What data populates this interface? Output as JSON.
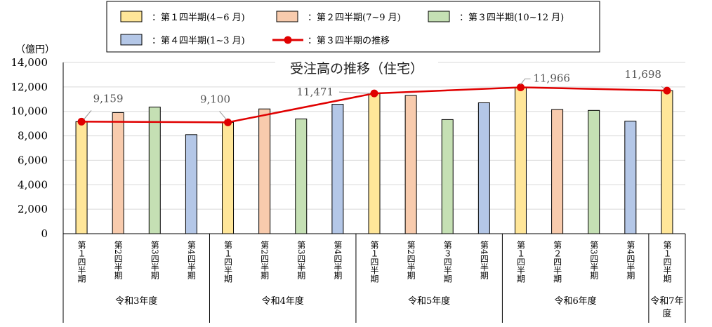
{
  "chart_data": {
    "type": "bar",
    "title": "受注高の推移（住宅）",
    "unit_label": "（億円）",
    "ylim": [
      0,
      14000
    ],
    "yticks": [
      "0",
      "2,000",
      "4,000",
      "6,000",
      "8,000",
      "10,000",
      "12,000",
      "14,000"
    ],
    "grid": true,
    "legend_position": "top",
    "legend": [
      {
        "label": "：第１四半期(4~6 月)",
        "color": "#ffe699",
        "kind": "box"
      },
      {
        "label": "：第２四半期(7~9 月)",
        "color": "#f8cbad",
        "kind": "box"
      },
      {
        "label": "：第３四半期(10~12 月)",
        "color": "#c5e0b4",
        "kind": "box"
      },
      {
        "label": "：第４四半期(1~3 月)",
        "color": "#b4c7e7",
        "kind": "box"
      },
      {
        "label": "：第３四半期の推移",
        "color": "#e00000",
        "kind": "line"
      }
    ],
    "categories": [
      "第１四半期",
      "第2四半期",
      "第3四半期",
      "第4四半期",
      "第１四半期",
      "第2四半期",
      "第3四半期",
      "第4四半期",
      "第１四半期",
      "第2四半期",
      "第３四半期",
      "第4四半期",
      "第１四半期",
      "第２四半期",
      "第3四半期",
      "第4四半期",
      "第１四半期"
    ],
    "bar_colors": [
      "#ffe699",
      "#f8cbad",
      "#c5e0b4",
      "#b4c7e7",
      "#ffe699",
      "#f8cbad",
      "#c5e0b4",
      "#b4c7e7",
      "#ffe699",
      "#f8cbad",
      "#c5e0b4",
      "#b4c7e7",
      "#ffe699",
      "#f8cbad",
      "#c5e0b4",
      "#b4c7e7",
      "#ffe699"
    ],
    "values": [
      9159,
      9900,
      10350,
      8100,
      9100,
      10200,
      9380,
      10580,
      11471,
      11300,
      9330,
      10700,
      11966,
      10150,
      10080,
      9200,
      11698
    ],
    "groups": [
      {
        "label": "令和3年度",
        "start": 0,
        "count": 4
      },
      {
        "label": "令和4年度",
        "start": 4,
        "count": 4
      },
      {
        "label": "令和5年度",
        "start": 8,
        "count": 4
      },
      {
        "label": "令和6年度",
        "start": 12,
        "count": 4
      },
      {
        "label": "令和7年度",
        "start": 16,
        "count": 1
      }
    ],
    "line_series": {
      "name": "第３四半期の推移",
      "color": "#e00000",
      "indices": [
        0,
        4,
        8,
        12,
        16
      ],
      "values": [
        9159,
        9100,
        11471,
        11966,
        11698
      ],
      "labels": [
        "9,159",
        "9,100",
        "11,471",
        "11,966",
        "11,698"
      ]
    }
  }
}
